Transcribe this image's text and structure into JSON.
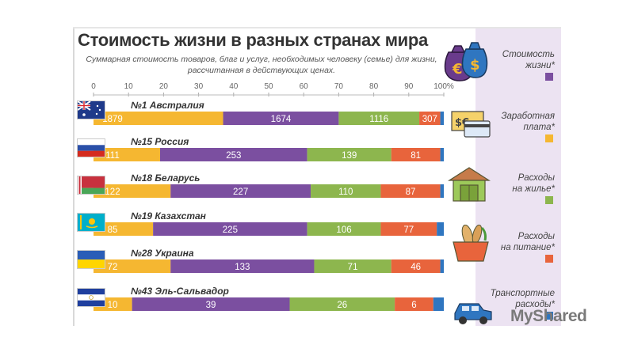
{
  "title": "Стоимость жизни в разных странах мира",
  "subtitle_line1": "Суммарная стоимость товаров, благ и услуг, необходимых человеку (семье) для жизни,",
  "subtitle_line2": "рассчитанная в действующих ценах.",
  "watermark": "MyShared",
  "legend": [
    {
      "line1": "Стоимость",
      "line2": "жизни*",
      "color": "#7b4fa0",
      "icon": "money-bags-icon"
    },
    {
      "line1": "Заработная",
      "line2": "плата*",
      "color": "#f5b731",
      "icon": "wallet-card-icon"
    },
    {
      "line1": "Расходы",
      "line2": "на жилье*",
      "color": "#8db64e",
      "icon": "house-icon"
    },
    {
      "line1": "Расходы",
      "line2": "на питание*",
      "color": "#e8643c",
      "icon": "groceries-icon"
    },
    {
      "line1": "Транспортные",
      "line2": "расходы*",
      "color": "#2f76c0",
      "icon": "car-icon"
    }
  ],
  "chart_data": {
    "type": "bar",
    "orientation": "horizontal",
    "stacked": true,
    "x_ticks": [
      "0",
      "10",
      "20",
      "30",
      "40",
      "50",
      "60",
      "70",
      "80",
      "90",
      "100%"
    ],
    "xlim": [
      0,
      100
    ],
    "categories": [
      "№1 Австралия",
      "№15 Россия",
      "№18 Беларусь",
      "№19 Казахстан",
      "№28 Украина",
      "№43 Эль-Сальвадор"
    ],
    "series": [
      {
        "name": "Заработная плата*",
        "color": "#f5b731",
        "percent": [
          37,
          19,
          22,
          17,
          22,
          11
        ],
        "labels": [
          "1879",
          "111",
          "122",
          "85",
          "72",
          "10"
        ]
      },
      {
        "name": "Стоимость жизни*",
        "color": "#7b4fa0",
        "percent": [
          33,
          42,
          40,
          44,
          41,
          45
        ],
        "labels": [
          "1674",
          "253",
          "227",
          "225",
          "133",
          "39"
        ]
      },
      {
        "name": "Расходы на жилье*",
        "color": "#8db64e",
        "percent": [
          23,
          24,
          20,
          21,
          22,
          30
        ],
        "labels": [
          "1116",
          "139",
          "110",
          "106",
          "71",
          "26"
        ]
      },
      {
        "name": "Расходы на питание*",
        "color": "#e8643c",
        "percent": [
          6,
          14,
          17,
          16,
          14,
          11
        ],
        "labels": [
          "307",
          "81",
          "87",
          "77",
          "46",
          "6"
        ]
      },
      {
        "name": "Транспортные расходы*",
        "color": "#2f76c0",
        "percent": [
          1,
          1,
          1,
          2,
          1,
          3
        ],
        "labels": [
          "",
          "",
          "",
          "",
          "",
          ""
        ]
      }
    ]
  }
}
